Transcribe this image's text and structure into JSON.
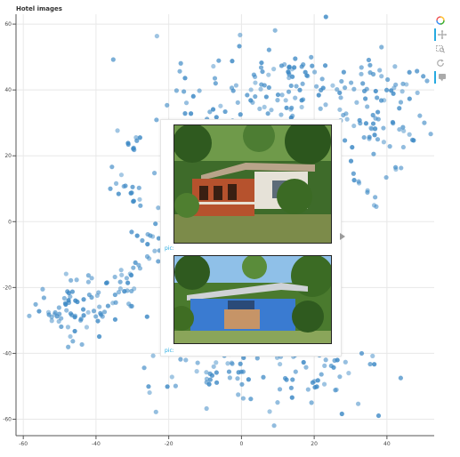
{
  "title": "Hotel images",
  "toolbar": {
    "tools": [
      {
        "name": "bokeh-logo-icon"
      },
      {
        "name": "pan-tool-icon"
      },
      {
        "name": "box-zoom-tool-icon"
      },
      {
        "name": "reset-tool-icon"
      },
      {
        "name": "hover-tool-icon"
      }
    ],
    "accent": "#26aae1"
  },
  "tooltip": {
    "rows": [
      {
        "label": "pic:"
      },
      {
        "label": "pic:"
      }
    ]
  },
  "chart_data": {
    "type": "scatter",
    "title": "Hotel images",
    "xlim": [
      -62,
      53
    ],
    "ylim": [
      -65,
      63
    ],
    "xticks": [
      -60,
      -40,
      -20,
      0,
      20,
      40
    ],
    "yticks": [
      60,
      40,
      20,
      0,
      -20,
      -40,
      -60
    ],
    "grid": true,
    "point_color": "#3a87c4",
    "clusters": [
      {
        "center": [
          -46,
          -26
        ],
        "spread": [
          6,
          5
        ],
        "count": 70
      },
      {
        "center": [
          -32,
          -20
        ],
        "spread": [
          3,
          4
        ],
        "count": 24
      },
      {
        "center": [
          -31,
          9
        ],
        "spread": [
          3,
          3
        ],
        "count": 16
      },
      {
        "center": [
          -29,
          24
        ],
        "spread": [
          2,
          2
        ],
        "count": 8
      },
      {
        "center": [
          -25,
          -5
        ],
        "spread": [
          3,
          5
        ],
        "count": 18
      },
      {
        "center": [
          10,
          40
        ],
        "spread": [
          13,
          8
        ],
        "count": 130
      },
      {
        "center": [
          38,
          30
        ],
        "spread": [
          8,
          10
        ],
        "count": 80
      },
      {
        "center": [
          8,
          -45
        ],
        "spread": [
          15,
          7
        ],
        "count": 110
      },
      {
        "center": [
          -12,
          28
        ],
        "spread": [
          6,
          6
        ],
        "count": 30
      },
      {
        "center": [
          -18,
          -35
        ],
        "spread": [
          4,
          6
        ],
        "count": 12
      },
      {
        "center": [
          34,
          10
        ],
        "spread": [
          3,
          4
        ],
        "count": 8
      }
    ]
  }
}
